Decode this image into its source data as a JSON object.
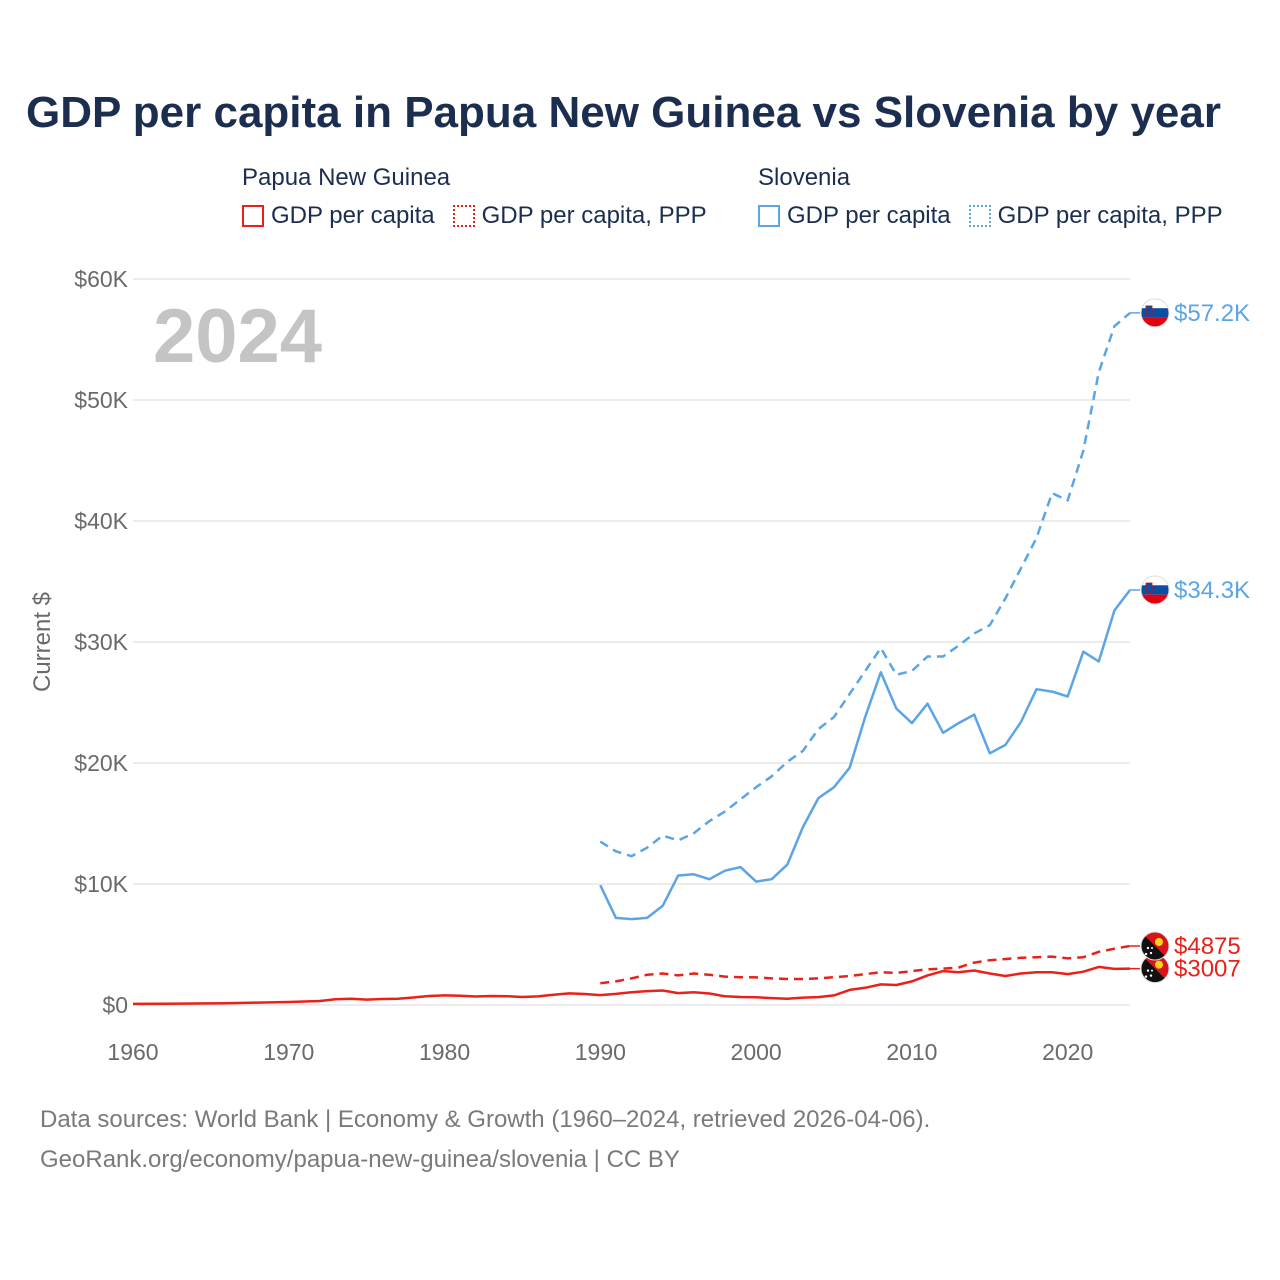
{
  "title": "GDP per capita in Papua New Guinea vs Slovenia by year",
  "legend": {
    "groups": [
      {
        "country": "Papua New Guinea",
        "items": [
          "GDP per capita",
          "GDP per capita, PPP"
        ]
      },
      {
        "country": "Slovenia",
        "items": [
          "GDP per capita",
          "GDP per capita, PPP"
        ]
      }
    ]
  },
  "colors": {
    "png": "#e8221a",
    "slovenia": "#5ba4e5",
    "year": "#c4c4c4",
    "axis_text": "#6a6a6a",
    "grid": "#e6e6e6"
  },
  "chart_data": {
    "type": "line",
    "title": "GDP per capita in Papua New Guinea vs Slovenia by year",
    "xlabel": "",
    "ylabel": "Current $",
    "xlim": [
      1960,
      2024
    ],
    "ylim": [
      0,
      60000
    ],
    "x_ticks": [
      1960,
      1970,
      1980,
      1990,
      2000,
      2010,
      2020
    ],
    "x_tick_labels": [
      "1960",
      "1970",
      "1980",
      "1990",
      "2000",
      "2010",
      "2020"
    ],
    "y_ticks": [
      0,
      10000,
      20000,
      30000,
      40000,
      50000,
      60000
    ],
    "y_tick_labels": [
      "$0",
      "$10K",
      "$20K",
      "$30K",
      "$40K",
      "$50K",
      "$60K"
    ],
    "year_label": "2024",
    "series": [
      {
        "name": "Papua New Guinea – GDP per capita",
        "style": "solid",
        "color": "#e8221a",
        "end_label": "$3007",
        "points": [
          [
            1960,
            95
          ],
          [
            1962,
            105
          ],
          [
            1964,
            120
          ],
          [
            1966,
            150
          ],
          [
            1968,
            200
          ],
          [
            1970,
            250
          ],
          [
            1972,
            330
          ],
          [
            1973,
            480
          ],
          [
            1974,
            520
          ],
          [
            1975,
            450
          ],
          [
            1976,
            500
          ],
          [
            1977,
            520
          ],
          [
            1978,
            620
          ],
          [
            1979,
            740
          ],
          [
            1980,
            790
          ],
          [
            1981,
            760
          ],
          [
            1982,
            700
          ],
          [
            1983,
            740
          ],
          [
            1984,
            730
          ],
          [
            1985,
            660
          ],
          [
            1986,
            710
          ],
          [
            1987,
            840
          ],
          [
            1988,
            960
          ],
          [
            1989,
            910
          ],
          [
            1990,
            820
          ],
          [
            1991,
            920
          ],
          [
            1992,
            1050
          ],
          [
            1993,
            1150
          ],
          [
            1994,
            1200
          ],
          [
            1995,
            980
          ],
          [
            1996,
            1060
          ],
          [
            1997,
            950
          ],
          [
            1998,
            720
          ],
          [
            1999,
            660
          ],
          [
            2000,
            640
          ],
          [
            2001,
            570
          ],
          [
            2002,
            520
          ],
          [
            2003,
            610
          ],
          [
            2004,
            650
          ],
          [
            2005,
            790
          ],
          [
            2006,
            1250
          ],
          [
            2007,
            1420
          ],
          [
            2008,
            1700
          ],
          [
            2009,
            1650
          ],
          [
            2010,
            1950
          ],
          [
            2011,
            2450
          ],
          [
            2012,
            2800
          ],
          [
            2013,
            2700
          ],
          [
            2014,
            2850
          ],
          [
            2015,
            2600
          ],
          [
            2016,
            2400
          ],
          [
            2017,
            2600
          ],
          [
            2018,
            2700
          ],
          [
            2019,
            2700
          ],
          [
            2020,
            2550
          ],
          [
            2021,
            2750
          ],
          [
            2022,
            3150
          ],
          [
            2023,
            2980
          ],
          [
            2024,
            3007
          ]
        ]
      },
      {
        "name": "Papua New Guinea – GDP per capita, PPP",
        "style": "dashed",
        "color": "#e8221a",
        "end_label": "$4875",
        "points": [
          [
            1990,
            1800
          ],
          [
            1991,
            1950
          ],
          [
            1992,
            2200
          ],
          [
            1993,
            2500
          ],
          [
            1994,
            2600
          ],
          [
            1995,
            2450
          ],
          [
            1996,
            2600
          ],
          [
            1997,
            2500
          ],
          [
            1998,
            2350
          ],
          [
            1999,
            2300
          ],
          [
            2000,
            2280
          ],
          [
            2001,
            2200
          ],
          [
            2002,
            2150
          ],
          [
            2003,
            2150
          ],
          [
            2004,
            2200
          ],
          [
            2005,
            2300
          ],
          [
            2006,
            2400
          ],
          [
            2007,
            2550
          ],
          [
            2008,
            2700
          ],
          [
            2009,
            2650
          ],
          [
            2010,
            2800
          ],
          [
            2011,
            2950
          ],
          [
            2012,
            3000
          ],
          [
            2013,
            3100
          ],
          [
            2014,
            3500
          ],
          [
            2015,
            3700
          ],
          [
            2016,
            3800
          ],
          [
            2017,
            3900
          ],
          [
            2018,
            3950
          ],
          [
            2019,
            4000
          ],
          [
            2020,
            3850
          ],
          [
            2021,
            3950
          ],
          [
            2022,
            4400
          ],
          [
            2023,
            4650
          ],
          [
            2024,
            4875
          ]
        ]
      },
      {
        "name": "Slovenia – GDP per capita",
        "style": "solid",
        "color": "#5ba4e5",
        "end_label": "$34.3K",
        "points": [
          [
            1990,
            9900
          ],
          [
            1991,
            7200
          ],
          [
            1992,
            7100
          ],
          [
            1993,
            7200
          ],
          [
            1994,
            8200
          ],
          [
            1995,
            10700
          ],
          [
            1996,
            10800
          ],
          [
            1997,
            10400
          ],
          [
            1998,
            11100
          ],
          [
            1999,
            11400
          ],
          [
            2000,
            10200
          ],
          [
            2001,
            10400
          ],
          [
            2002,
            11600
          ],
          [
            2003,
            14700
          ],
          [
            2004,
            17100
          ],
          [
            2005,
            18000
          ],
          [
            2006,
            19600
          ],
          [
            2007,
            23800
          ],
          [
            2008,
            27500
          ],
          [
            2009,
            24500
          ],
          [
            2010,
            23300
          ],
          [
            2011,
            24900
          ],
          [
            2012,
            22500
          ],
          [
            2013,
            23300
          ],
          [
            2014,
            24000
          ],
          [
            2015,
            20800
          ],
          [
            2016,
            21500
          ],
          [
            2017,
            23400
          ],
          [
            2018,
            26100
          ],
          [
            2019,
            25900
          ],
          [
            2020,
            25500
          ],
          [
            2021,
            29200
          ],
          [
            2022,
            28400
          ],
          [
            2023,
            32600
          ],
          [
            2024,
            34300
          ]
        ]
      },
      {
        "name": "Slovenia – GDP per capita, PPP",
        "style": "dashed",
        "color": "#5ba4e5",
        "end_label": "$57.2K",
        "points": [
          [
            1990,
            13500
          ],
          [
            1991,
            12700
          ],
          [
            1992,
            12300
          ],
          [
            1993,
            13000
          ],
          [
            1994,
            14000
          ],
          [
            1995,
            13600
          ],
          [
            1996,
            14200
          ],
          [
            1997,
            15200
          ],
          [
            1998,
            16000
          ],
          [
            1999,
            17000
          ],
          [
            2000,
            18000
          ],
          [
            2001,
            18900
          ],
          [
            2002,
            20100
          ],
          [
            2003,
            21000
          ],
          [
            2004,
            22800
          ],
          [
            2005,
            23800
          ],
          [
            2006,
            25700
          ],
          [
            2007,
            27600
          ],
          [
            2008,
            29500
          ],
          [
            2009,
            27300
          ],
          [
            2010,
            27600
          ],
          [
            2011,
            28800
          ],
          [
            2012,
            28800
          ],
          [
            2013,
            29700
          ],
          [
            2014,
            30700
          ],
          [
            2015,
            31400
          ],
          [
            2016,
            33600
          ],
          [
            2017,
            36100
          ],
          [
            2018,
            38600
          ],
          [
            2019,
            42300
          ],
          [
            2020,
            41700
          ],
          [
            2021,
            45800
          ],
          [
            2022,
            52300
          ],
          [
            2023,
            56100
          ],
          [
            2024,
            57200
          ]
        ]
      }
    ]
  },
  "footer": {
    "line1": "Data sources: World Bank | Economy & Growth (1960–2024, retrieved 2026-04-06).",
    "line2": "GeoRank.org/economy/papua-new-guinea/slovenia | CC BY"
  }
}
